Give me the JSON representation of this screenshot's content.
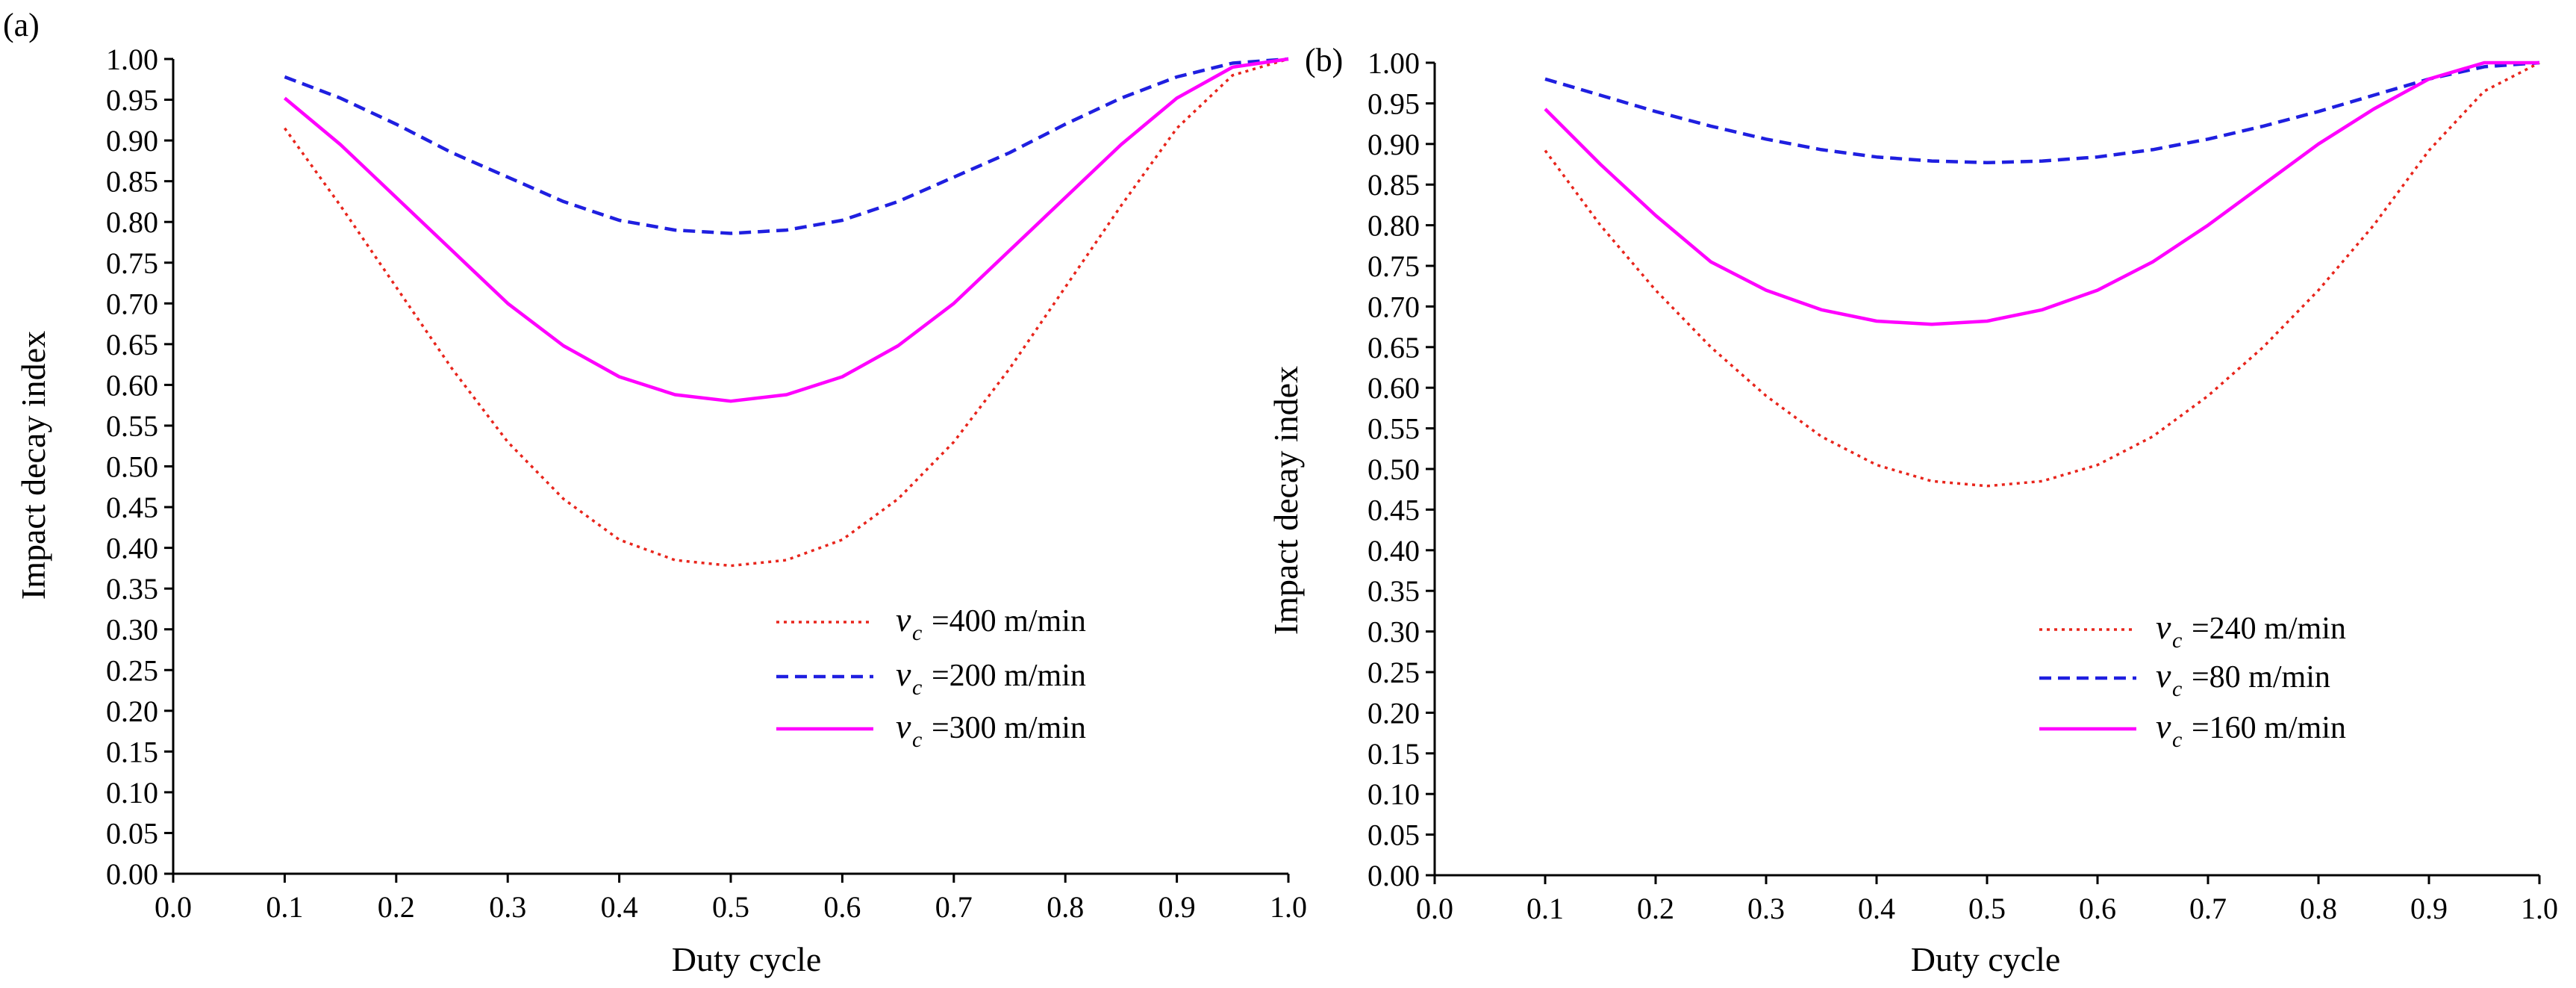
{
  "chart_data": [
    {
      "type": "line",
      "panel_label": "(a)",
      "xlabel": "Duty cycle",
      "ylabel": "Impact decay index",
      "xlim": [
        0.0,
        1.0
      ],
      "ylim": [
        0.0,
        1.0
      ],
      "x_ticks": [
        "0.0",
        "0.1",
        "0.2",
        "0.3",
        "0.4",
        "0.5",
        "0.6",
        "0.7",
        "0.8",
        "0.9",
        "1.0"
      ],
      "y_ticks": [
        "0.00",
        "0.05",
        "0.10",
        "0.15",
        "0.20",
        "0.25",
        "0.30",
        "0.35",
        "0.40",
        "0.45",
        "0.50",
        "0.55",
        "0.60",
        "0.65",
        "0.70",
        "0.75",
        "0.80",
        "0.85",
        "0.90",
        "0.95",
        "1.00"
      ],
      "grid": false,
      "legend_position": "lower-right",
      "legend_symbol": "v",
      "legend_subscript": "c",
      "x": [
        0.1,
        0.15,
        0.2,
        0.25,
        0.3,
        0.35,
        0.4,
        0.45,
        0.5,
        0.55,
        0.6,
        0.65,
        0.7,
        0.75,
        0.8,
        0.85,
        0.9,
        0.95,
        1.0
      ],
      "series": [
        {
          "name": "=400 m/min",
          "style": "dotted",
          "color": "#e8251c",
          "values": [
            0.915,
            0.82,
            0.72,
            0.62,
            0.53,
            0.46,
            0.41,
            0.385,
            0.378,
            0.385,
            0.41,
            0.46,
            0.53,
            0.62,
            0.72,
            0.82,
            0.915,
            0.98,
            1.0
          ]
        },
        {
          "name": "=200 m/min",
          "style": "dashed",
          "color": "#1f1fe0",
          "values": [
            0.978,
            0.952,
            0.92,
            0.885,
            0.855,
            0.825,
            0.802,
            0.79,
            0.786,
            0.79,
            0.802,
            0.825,
            0.855,
            0.885,
            0.92,
            0.952,
            0.978,
            0.995,
            1.0
          ]
        },
        {
          "name": "=300 m/min",
          "style": "solid",
          "color": "#ff00ff",
          "values": [
            0.952,
            0.895,
            0.83,
            0.765,
            0.7,
            0.648,
            0.61,
            0.588,
            0.58,
            0.588,
            0.61,
            0.648,
            0.7,
            0.765,
            0.83,
            0.895,
            0.952,
            0.99,
            1.0
          ]
        }
      ]
    },
    {
      "type": "line",
      "panel_label": "(b)",
      "xlabel": "Duty cycle",
      "ylabel": "Impact decay index",
      "xlim": [
        0.0,
        1.0
      ],
      "ylim": [
        0.0,
        1.0
      ],
      "x_ticks": [
        "0.0",
        "0.1",
        "0.2",
        "0.3",
        "0.4",
        "0.5",
        "0.6",
        "0.7",
        "0.8",
        "0.9",
        "1.0"
      ],
      "y_ticks": [
        "0.00",
        "0.05",
        "0.10",
        "0.15",
        "0.20",
        "0.25",
        "0.30",
        "0.35",
        "0.40",
        "0.45",
        "0.50",
        "0.55",
        "0.60",
        "0.65",
        "0.70",
        "0.75",
        "0.80",
        "0.85",
        "0.90",
        "0.95",
        "1.00"
      ],
      "grid": false,
      "legend_position": "lower-right",
      "legend_symbol": "v",
      "legend_subscript": "c",
      "x": [
        0.1,
        0.15,
        0.2,
        0.25,
        0.3,
        0.35,
        0.4,
        0.45,
        0.5,
        0.55,
        0.6,
        0.65,
        0.7,
        0.75,
        0.8,
        0.85,
        0.9,
        0.95,
        1.0
      ],
      "series": [
        {
          "name": "=240 m/min",
          "style": "dotted",
          "color": "#e8251c",
          "values": [
            0.892,
            0.8,
            0.72,
            0.65,
            0.59,
            0.54,
            0.505,
            0.485,
            0.479,
            0.485,
            0.505,
            0.54,
            0.59,
            0.65,
            0.72,
            0.8,
            0.892,
            0.965,
            1.0
          ]
        },
        {
          "name": "=80 m/min",
          "style": "dashed",
          "color": "#1f1fe0",
          "values": [
            0.98,
            0.96,
            0.94,
            0.922,
            0.906,
            0.893,
            0.884,
            0.879,
            0.877,
            0.879,
            0.884,
            0.893,
            0.906,
            0.922,
            0.94,
            0.96,
            0.98,
            0.995,
            1.0
          ]
        },
        {
          "name": "=160 m/min",
          "style": "solid",
          "color": "#ff00ff",
          "values": [
            0.943,
            0.875,
            0.812,
            0.755,
            0.72,
            0.696,
            0.682,
            0.678,
            0.682,
            0.696,
            0.72,
            0.755,
            0.8,
            0.85,
            0.9,
            0.943,
            0.98,
            1.0,
            1.0
          ]
        }
      ]
    }
  ]
}
